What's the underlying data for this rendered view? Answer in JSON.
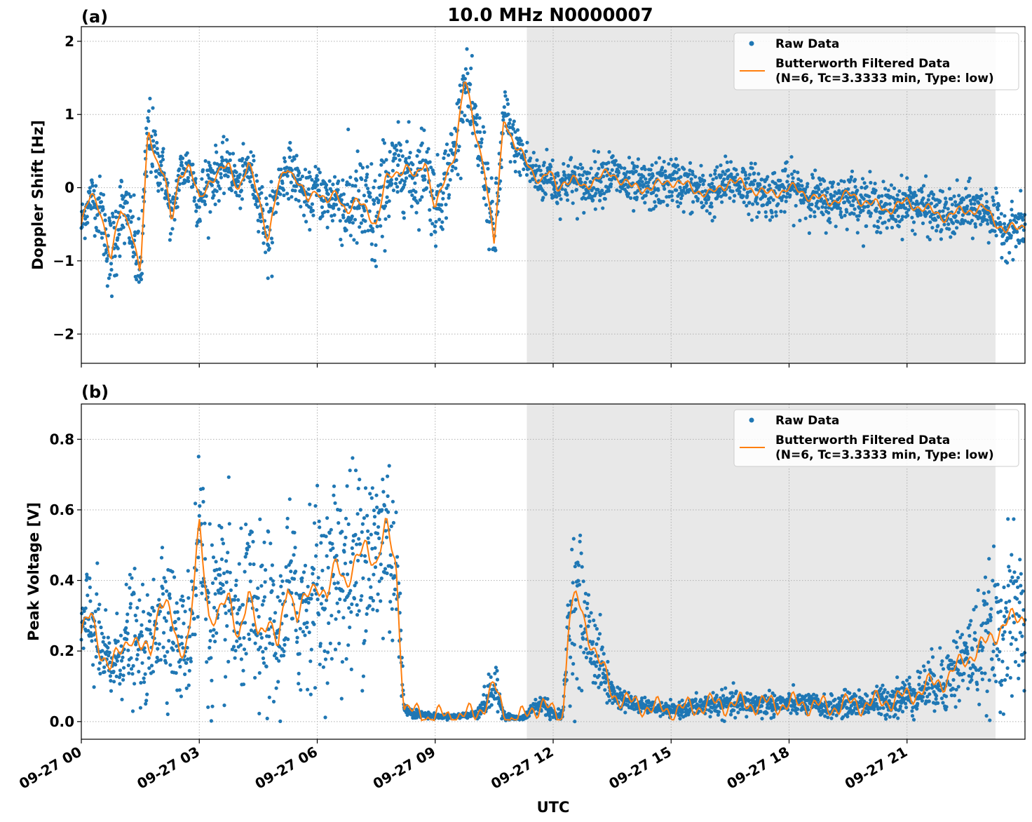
{
  "chart_data": [
    {
      "type": "scatter",
      "panel_label": "(a)",
      "title": "10.0 MHz N0000007",
      "xlabel": "",
      "ylabel": "Doppler Shift [Hz]",
      "xlim_hours": [
        0,
        24
      ],
      "ylim": [
        -2.4,
        2.2
      ],
      "yticks": [
        2,
        1,
        0,
        -1,
        -2
      ],
      "ytick_labels": [
        "2",
        "1",
        "0",
        "−1",
        "−2"
      ],
      "shaded_region_hours": [
        11.33,
        23.25
      ],
      "grid": true,
      "legend_placement": "top-right",
      "series": [
        {
          "name": "Raw Data",
          "style": "points",
          "color": "#1f77b4",
          "x": [
            0,
            0.25,
            0.5,
            0.75,
            1.0,
            1.25,
            1.5,
            1.7,
            1.9,
            2.1,
            2.3,
            2.5,
            2.75,
            3.0,
            3.25,
            3.5,
            3.75,
            4.0,
            4.25,
            4.5,
            4.75,
            5.0,
            5.25,
            5.5,
            5.75,
            6.0,
            6.25,
            6.5,
            6.75,
            7.0,
            7.25,
            7.5,
            7.75,
            8.0,
            8.25,
            8.5,
            8.75,
            9.0,
            9.25,
            9.5,
            9.75,
            10.0,
            10.25,
            10.5,
            10.75,
            11.0,
            11.25,
            11.5,
            11.7,
            11.9,
            12.1,
            12.3,
            12.5,
            12.75,
            13.0,
            13.5,
            14.0,
            14.5,
            15.0,
            15.5,
            16.0,
            16.5,
            17.0,
            17.5,
            18.0,
            18.5,
            19.0,
            19.5,
            20.0,
            20.5,
            21.0,
            21.5,
            22.0,
            22.5,
            23.0,
            23.5,
            24.0
          ],
          "y": [
            -0.5,
            -0.1,
            -0.3,
            -1.0,
            -0.3,
            -0.5,
            -1.2,
            0.8,
            0.4,
            0.2,
            -0.5,
            0.2,
            0.3,
            -0.2,
            0.1,
            0.2,
            0.3,
            0.0,
            0.3,
            -0.1,
            -0.7,
            0.0,
            0.3,
            0.1,
            -0.2,
            0.0,
            -0.2,
            -0.1,
            -0.3,
            -0.2,
            -0.3,
            -0.5,
            0.1,
            0.2,
            0.3,
            0.1,
            0.4,
            -0.3,
            0.1,
            0.5,
            1.5,
            0.8,
            0.3,
            -0.8,
            1.0,
            0.6,
            0.4,
            0.2,
            0.1,
            0.2,
            0.0,
            0.1,
            0.1,
            0.0,
            0.1,
            0.2,
            0.0,
            0.0,
            0.1,
            0.0,
            -0.1,
            0.1,
            0.0,
            -0.1,
            0.0,
            -0.1,
            -0.2,
            -0.1,
            -0.2,
            -0.3,
            -0.2,
            -0.3,
            -0.4,
            -0.3,
            -0.3,
            -0.6,
            -0.5
          ],
          "spread": [
            0.3,
            0.3,
            0.4,
            0.6,
            0.5,
            0.4,
            0.6,
            0.5,
            0.4,
            0.3,
            0.3,
            0.3,
            0.3,
            0.4,
            0.4,
            0.3,
            0.3,
            0.3,
            0.3,
            0.3,
            0.5,
            0.3,
            0.3,
            0.3,
            0.3,
            0.3,
            0.4,
            0.4,
            0.6,
            0.6,
            0.7,
            0.7,
            0.6,
            0.5,
            0.5,
            0.5,
            0.5,
            0.5,
            0.5,
            0.5,
            0.4,
            0.5,
            0.5,
            0.5,
            0.4,
            0.3,
            0.3,
            0.3,
            0.3,
            0.3,
            0.3,
            0.3,
            0.3,
            0.3,
            0.3,
            0.3,
            0.3,
            0.3,
            0.3,
            0.3,
            0.3,
            0.3,
            0.3,
            0.3,
            0.3,
            0.3,
            0.3,
            0.3,
            0.3,
            0.3,
            0.3,
            0.3,
            0.3,
            0.3,
            0.3,
            0.3,
            0.3
          ]
        },
        {
          "name": "Butterworth Filtered Data\n(N=6, Tc=3.3333 min, Type: low)",
          "label_line1": "Butterworth Filtered Data",
          "label_line2": "(N=6, Tc=3.3333 min, Type: low)",
          "style": "line",
          "color": "#ff7f0e",
          "x": [
            0,
            0.25,
            0.5,
            0.75,
            1.0,
            1.25,
            1.5,
            1.7,
            1.9,
            2.1,
            2.3,
            2.5,
            2.75,
            3.0,
            3.25,
            3.5,
            3.75,
            4.0,
            4.25,
            4.5,
            4.75,
            5.0,
            5.25,
            5.5,
            5.75,
            6.0,
            6.25,
            6.5,
            6.75,
            7.0,
            7.25,
            7.5,
            7.75,
            8.0,
            8.25,
            8.5,
            8.75,
            9.0,
            9.25,
            9.5,
            9.75,
            10.0,
            10.25,
            10.5,
            10.75,
            11.0,
            11.25,
            11.5,
            11.7,
            11.9,
            12.1,
            12.3,
            12.5,
            12.75,
            13.0,
            13.5,
            14.0,
            14.5,
            15.0,
            15.5,
            16.0,
            16.5,
            17.0,
            17.5,
            18.0,
            18.5,
            19.0,
            19.5,
            20.0,
            20.5,
            21.0,
            21.5,
            22.0,
            22.5,
            23.0,
            23.5,
            24.0
          ],
          "y": [
            -0.5,
            -0.1,
            -0.3,
            -1.0,
            -0.3,
            -0.5,
            -1.2,
            0.8,
            0.4,
            0.2,
            -0.5,
            0.2,
            0.3,
            -0.2,
            0.1,
            0.2,
            0.3,
            0.0,
            0.3,
            -0.1,
            -0.7,
            0.0,
            0.3,
            0.1,
            -0.2,
            0.0,
            -0.2,
            -0.1,
            -0.3,
            -0.2,
            -0.3,
            -0.5,
            0.1,
            0.2,
            0.3,
            0.1,
            0.4,
            -0.3,
            0.1,
            0.5,
            1.5,
            0.8,
            0.3,
            -0.8,
            1.0,
            0.6,
            0.4,
            0.2,
            0.1,
            0.2,
            0.0,
            0.1,
            0.1,
            0.0,
            0.1,
            0.2,
            0.0,
            0.0,
            0.1,
            0.0,
            -0.1,
            0.1,
            0.0,
            -0.1,
            0.0,
            -0.1,
            -0.2,
            -0.1,
            -0.2,
            -0.3,
            -0.2,
            -0.3,
            -0.4,
            -0.3,
            -0.3,
            -0.6,
            -0.5
          ]
        }
      ]
    },
    {
      "type": "scatter",
      "panel_label": "(b)",
      "title": "",
      "xlabel": "UTC",
      "ylabel": "Peak Voltage [V]",
      "xlim_hours": [
        0,
        24
      ],
      "ylim": [
        -0.05,
        0.9
      ],
      "yticks": [
        0.8,
        0.6,
        0.4,
        0.2,
        0.0
      ],
      "ytick_labels": [
        "0.8",
        "0.6",
        "0.4",
        "0.2",
        "0.0"
      ],
      "xticks_hours": [
        0,
        3,
        6,
        9,
        12,
        15,
        18,
        21
      ],
      "xtick_labels": [
        "09-27 00",
        "09-27 03",
        "09-27 06",
        "09-27 09",
        "09-27 12",
        "09-27 15",
        "09-27 18",
        "09-27 21"
      ],
      "shaded_region_hours": [
        11.33,
        23.25
      ],
      "grid": true,
      "legend_placement": "top-right",
      "series": [
        {
          "name": "Raw Data",
          "style": "points",
          "color": "#1f77b4",
          "x": [
            0,
            0.25,
            0.5,
            0.75,
            1.0,
            1.25,
            1.5,
            1.75,
            2.0,
            2.25,
            2.5,
            2.75,
            3.0,
            3.25,
            3.5,
            3.75,
            4.0,
            4.25,
            4.5,
            4.75,
            5.0,
            5.25,
            5.5,
            5.75,
            6.0,
            6.25,
            6.5,
            6.75,
            7.0,
            7.25,
            7.5,
            7.75,
            8.0,
            8.2,
            8.3,
            8.6,
            9.0,
            9.5,
            10.0,
            10.25,
            10.5,
            10.75,
            11.0,
            11.25,
            11.5,
            11.75,
            12.0,
            12.25,
            12.4,
            12.6,
            12.8,
            13.0,
            13.25,
            13.5,
            14.0,
            14.5,
            15.0,
            15.5,
            16.0,
            16.5,
            17.0,
            17.5,
            18.0,
            18.5,
            19.0,
            19.5,
            20.0,
            20.5,
            21.0,
            21.5,
            22.0,
            22.5,
            23.0,
            23.5,
            24.0
          ],
          "y": [
            0.25,
            0.3,
            0.2,
            0.15,
            0.2,
            0.25,
            0.2,
            0.2,
            0.35,
            0.3,
            0.2,
            0.25,
            0.55,
            0.3,
            0.3,
            0.35,
            0.25,
            0.35,
            0.25,
            0.3,
            0.2,
            0.4,
            0.3,
            0.35,
            0.4,
            0.35,
            0.45,
            0.4,
            0.45,
            0.5,
            0.45,
            0.55,
            0.45,
            0.05,
            0.03,
            0.02,
            0.015,
            0.015,
            0.02,
            0.05,
            0.1,
            0.02,
            0.01,
            0.01,
            0.04,
            0.05,
            0.02,
            0.02,
            0.3,
            0.35,
            0.28,
            0.22,
            0.15,
            0.08,
            0.05,
            0.04,
            0.03,
            0.04,
            0.05,
            0.05,
            0.05,
            0.05,
            0.05,
            0.05,
            0.04,
            0.05,
            0.05,
            0.06,
            0.07,
            0.1,
            0.12,
            0.18,
            0.22,
            0.28,
            0.3
          ],
          "spread": [
            0.1,
            0.15,
            0.1,
            0.08,
            0.1,
            0.15,
            0.12,
            0.12,
            0.2,
            0.15,
            0.12,
            0.15,
            0.25,
            0.2,
            0.2,
            0.2,
            0.15,
            0.2,
            0.2,
            0.2,
            0.15,
            0.2,
            0.2,
            0.2,
            0.2,
            0.2,
            0.25,
            0.25,
            0.25,
            0.25,
            0.25,
            0.25,
            0.25,
            0.02,
            0.01,
            0.01,
            0.005,
            0.005,
            0.01,
            0.03,
            0.06,
            0.01,
            0.005,
            0.005,
            0.02,
            0.03,
            0.01,
            0.01,
            0.15,
            0.2,
            0.12,
            0.1,
            0.08,
            0.03,
            0.02,
            0.015,
            0.015,
            0.02,
            0.03,
            0.03,
            0.03,
            0.03,
            0.025,
            0.025,
            0.025,
            0.03,
            0.03,
            0.04,
            0.05,
            0.06,
            0.08,
            0.1,
            0.15,
            0.2,
            0.18
          ]
        },
        {
          "name": "Butterworth Filtered Data\n(N=6, Tc=3.3333 min, Type: low)",
          "label_line1": "Butterworth Filtered Data",
          "label_line2": "(N=6, Tc=3.3333 min, Type: low)",
          "style": "line",
          "color": "#ff7f0e",
          "x": [
            0,
            0.25,
            0.5,
            0.75,
            1.0,
            1.25,
            1.5,
            1.75,
            2.0,
            2.25,
            2.5,
            2.75,
            3.0,
            3.25,
            3.5,
            3.75,
            4.0,
            4.25,
            4.5,
            4.75,
            5.0,
            5.25,
            5.5,
            5.75,
            6.0,
            6.25,
            6.5,
            6.75,
            7.0,
            7.25,
            7.5,
            7.75,
            8.0,
            8.2,
            8.3,
            8.6,
            9.0,
            9.5,
            10.0,
            10.25,
            10.5,
            10.75,
            11.0,
            11.25,
            11.5,
            11.75,
            12.0,
            12.25,
            12.4,
            12.6,
            12.8,
            13.0,
            13.25,
            13.5,
            14.0,
            14.5,
            15.0,
            15.5,
            16.0,
            16.5,
            17.0,
            17.5,
            18.0,
            18.5,
            19.0,
            19.5,
            20.0,
            20.5,
            21.0,
            21.5,
            22.0,
            22.5,
            23.0,
            23.5,
            24.0
          ],
          "y": [
            0.25,
            0.3,
            0.2,
            0.15,
            0.2,
            0.25,
            0.2,
            0.2,
            0.35,
            0.3,
            0.2,
            0.25,
            0.55,
            0.3,
            0.3,
            0.35,
            0.25,
            0.35,
            0.25,
            0.3,
            0.2,
            0.4,
            0.3,
            0.35,
            0.4,
            0.35,
            0.45,
            0.4,
            0.45,
            0.5,
            0.45,
            0.55,
            0.45,
            0.05,
            0.03,
            0.02,
            0.015,
            0.015,
            0.02,
            0.05,
            0.1,
            0.02,
            0.01,
            0.01,
            0.04,
            0.05,
            0.02,
            0.02,
            0.3,
            0.35,
            0.28,
            0.22,
            0.15,
            0.08,
            0.05,
            0.04,
            0.03,
            0.04,
            0.05,
            0.05,
            0.05,
            0.05,
            0.05,
            0.05,
            0.04,
            0.05,
            0.05,
            0.06,
            0.07,
            0.1,
            0.12,
            0.18,
            0.22,
            0.28,
            0.3
          ]
        }
      ]
    }
  ],
  "style": {
    "raw_color": "#1f77b4",
    "filtered_color": "#ff7f0e",
    "shade_color": "#e8e8e8",
    "grid_color": "#b0b0b0"
  }
}
